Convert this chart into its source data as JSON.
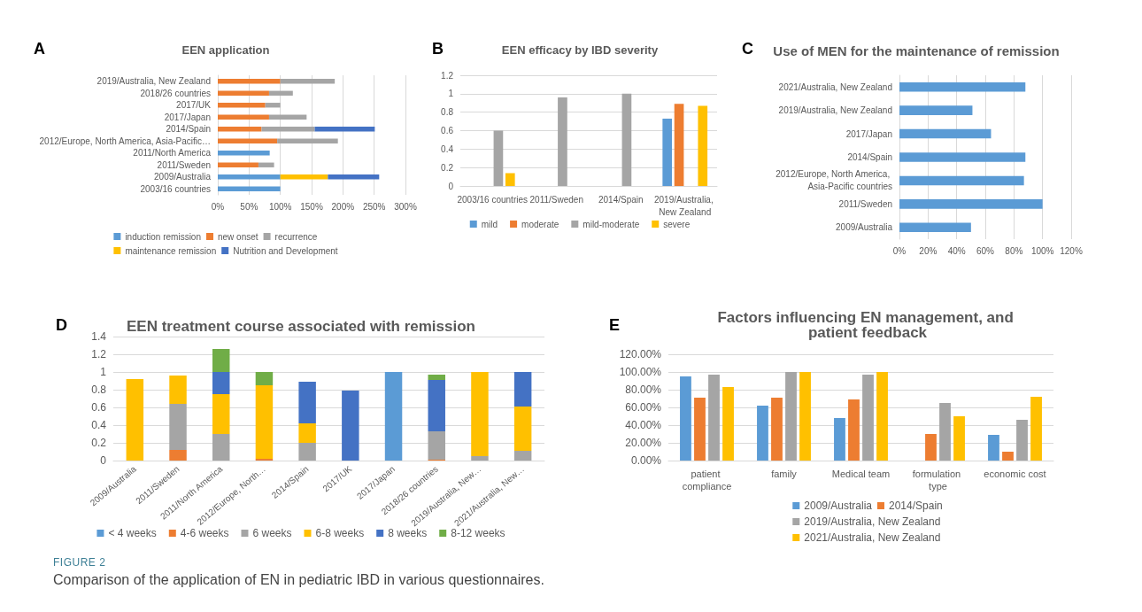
{
  "chart_data": [
    {
      "type": "bar",
      "title": "EEN application",
      "orientation": "horizontal",
      "stacked": true,
      "annotations": [
        "A"
      ],
      "categories": [
        "2019/Australia, New Zealand",
        "2018/26 countries",
        "2017/UK",
        "2017/Japan",
        "2014/Spain",
        "2012/Europe, North America, Asia-Pacific…",
        "2011/North America",
        "2011/Sweden",
        "2009/Australia",
        "2003/16 countries"
      ],
      "series": [
        {
          "name": "induction remission",
          "color": "#5b9bd5",
          "values": [
            null,
            null,
            null,
            null,
            null,
            null,
            83,
            null,
            100,
            100
          ]
        },
        {
          "name": "new onset",
          "color": "#ed7d31",
          "values": [
            100,
            82,
            76,
            82,
            70,
            95,
            null,
            65,
            null,
            null
          ]
        },
        {
          "name": "recurrence",
          "color": "#a5a5a5",
          "values": [
            87,
            38,
            24,
            60,
            85,
            97,
            null,
            25,
            null,
            null
          ]
        },
        {
          "name": "maintenance remission",
          "color": "#ffc000",
          "values": [
            null,
            null,
            null,
            null,
            null,
            null,
            null,
            null,
            76,
            null
          ]
        },
        {
          "name": "Nutrition and Development",
          "color": "#4472c4",
          "values": [
            null,
            null,
            null,
            null,
            96,
            null,
            null,
            null,
            82,
            null
          ]
        }
      ],
      "xlim": [
        0,
        300
      ],
      "xticks": [
        {
          "value": 0,
          "label": "0%"
        },
        {
          "value": 50,
          "label": "50%"
        },
        {
          "value": 100,
          "label": "100%"
        },
        {
          "value": 150,
          "label": "150%"
        },
        {
          "value": 200,
          "label": "200%"
        },
        {
          "value": 250,
          "label": "250%"
        },
        {
          "value": 300,
          "label": "300%"
        }
      ],
      "grid": "x",
      "legend": "bottom"
    },
    {
      "type": "bar",
      "title": "EEN efficacy by IBD severity",
      "annotations": [
        "B"
      ],
      "categories": [
        "2003/16 countries",
        "2011/Sweden",
        "2014/Spain",
        "2019/Australia, New Zealand"
      ],
      "series": [
        {
          "name": "mild",
          "color": "#5b9bd5",
          "values": [
            null,
            null,
            null,
            0.73
          ]
        },
        {
          "name": "moderate",
          "color": "#ed7d31",
          "values": [
            null,
            null,
            null,
            0.89
          ]
        },
        {
          "name": "mild-moderate",
          "color": "#a5a5a5",
          "values": [
            0.6,
            0.96,
            1.0,
            null
          ]
        },
        {
          "name": "severe",
          "color": "#ffc000",
          "values": [
            0.14,
            null,
            null,
            0.87
          ]
        }
      ],
      "ylim": [
        0,
        1.2
      ],
      "yticks": [
        0,
        0.2,
        0.4,
        0.6,
        0.8,
        1,
        1.2
      ],
      "grid": "y",
      "legend": "bottom"
    },
    {
      "type": "bar",
      "title": "Use of MEN for the maintenance of remission",
      "orientation": "horizontal",
      "annotations": [
        "C"
      ],
      "categories": [
        "2021/Australia, New Zealand",
        "2019/Australia, New Zealand",
        "2017/Japan",
        "2014/Spain",
        "2012/Europe, North America, Asia-Pacific countries",
        "2011/Sweden",
        "2009/Australia"
      ],
      "values": [
        88,
        51,
        64,
        88,
        87,
        100,
        50
      ],
      "color": "#5b9bd5",
      "xlim": [
        0,
        120
      ],
      "xticks": [
        {
          "value": 0,
          "label": "0%"
        },
        {
          "value": 20,
          "label": "20%"
        },
        {
          "value": 40,
          "label": "40%"
        },
        {
          "value": 60,
          "label": "60%"
        },
        {
          "value": 80,
          "label": "80%"
        },
        {
          "value": 100,
          "label": "100%"
        },
        {
          "value": 120,
          "label": "120%"
        }
      ],
      "grid": "x"
    },
    {
      "type": "bar",
      "title": "EEN treatment course associated with remission",
      "stacked": true,
      "annotations": [
        "D"
      ],
      "categories": [
        "2009/Australia",
        "2011/Sweden",
        "2011/North America",
        "2012/Europe, North…",
        "2014/Spain",
        "2017/UK",
        "2017/Japan",
        "2018/26 countries",
        "2019/Australia, New…",
        "2021/Australia, New…"
      ],
      "series": [
        {
          "name": "< 4 weeks",
          "color": "#5b9bd5",
          "values": [
            null,
            null,
            null,
            null,
            null,
            null,
            1.0,
            null,
            null,
            null
          ]
        },
        {
          "name": "4-6 weeks",
          "color": "#ed7d31",
          "values": [
            null,
            0.12,
            null,
            0.02,
            null,
            null,
            null,
            0.01,
            null,
            null
          ]
        },
        {
          "name": "6 weeks",
          "color": "#a5a5a5",
          "values": [
            null,
            0.52,
            0.3,
            null,
            0.2,
            null,
            null,
            0.32,
            0.05,
            0.11
          ]
        },
        {
          "name": "6-8 weeks",
          "color": "#ffc000",
          "values": [
            0.92,
            0.32,
            0.45,
            0.83,
            0.22,
            null,
            null,
            null,
            0.95,
            0.5
          ]
        },
        {
          "name": "8 weeks",
          "color": "#4472c4",
          "values": [
            null,
            null,
            0.25,
            null,
            0.47,
            0.79,
            null,
            0.58,
            null,
            0.39
          ]
        },
        {
          "name": "8-12 weeks",
          "color": "#70ad47",
          "values": [
            null,
            null,
            0.26,
            0.15,
            null,
            null,
            null,
            0.06,
            null,
            null
          ]
        }
      ],
      "ylim": [
        0,
        1.4
      ],
      "yticks": [
        0,
        0.2,
        0.4,
        0.6,
        0.8,
        1,
        1.2,
        1.4
      ],
      "grid": "y",
      "legend": "bottom"
    },
    {
      "type": "bar",
      "title": "Factors influencing EN management, and patient feedback",
      "annotations": [
        "E",
        "FIGURE 2",
        "Comparison of the application of EN in pediatric IBD in various questionnaires."
      ],
      "categories": [
        "patient compliance",
        "family",
        "Medical team",
        "formulation type",
        "economic cost"
      ],
      "series": [
        {
          "name": "2009/Australia",
          "color": "#5b9bd5",
          "values": [
            95,
            62,
            48,
            null,
            29
          ]
        },
        {
          "name": "2014/Spain",
          "color": "#ed7d31",
          "values": [
            71,
            71,
            69,
            30,
            10
          ]
        },
        {
          "name": "2019/Australia, New Zealand",
          "color": "#a5a5a5",
          "values": [
            97,
            100,
            97,
            65,
            46
          ]
        },
        {
          "name": "2021/Australia, New Zealand",
          "color": "#ffc000",
          "values": [
            83,
            100,
            100,
            50,
            72
          ]
        }
      ],
      "ylim": [
        0,
        120
      ],
      "yticks": [
        {
          "value": 0,
          "label": "0.00%"
        },
        {
          "value": 20,
          "label": "20.00%"
        },
        {
          "value": 40,
          "label": "40.00%"
        },
        {
          "value": 60,
          "label": "60.00%"
        },
        {
          "value": 80,
          "label": "80.00%"
        },
        {
          "value": 100,
          "label": "100.00%"
        },
        {
          "value": 120,
          "label": "120.00%"
        }
      ],
      "grid": "y",
      "legend": "bottom"
    }
  ]
}
